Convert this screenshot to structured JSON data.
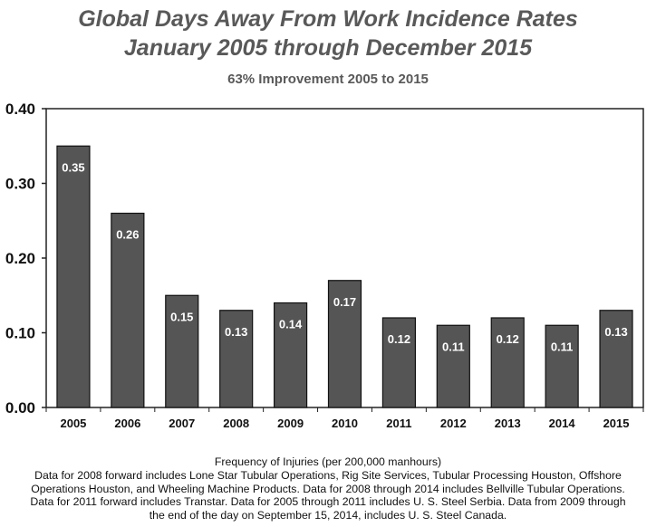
{
  "chart_data": {
    "type": "bar",
    "title": "Global Days Away From Work Incidence Rates",
    "title_line2": "January 2005 through December 2015",
    "subtitle": "63% Improvement 2005 to 2015",
    "categories": [
      "2005",
      "2006",
      "2007",
      "2008",
      "2009",
      "2010",
      "2011",
      "2012",
      "2013",
      "2014",
      "2015"
    ],
    "values": [
      0.35,
      0.26,
      0.15,
      0.13,
      0.14,
      0.17,
      0.12,
      0.11,
      0.12,
      0.11,
      0.13
    ],
    "data_labels": [
      "0.35",
      "0.26",
      "0.15",
      "0.13",
      "0.14",
      "0.17",
      "0.12",
      "0.11",
      "0.12",
      "0.11",
      "0.13"
    ],
    "yticks": [
      "0.00",
      "0.10",
      "0.20",
      "0.30",
      "0.40"
    ],
    "ylim": [
      0,
      0.4
    ],
    "xlabel": "",
    "ylabel": "",
    "grid": false,
    "bar_color": "#555555",
    "notes": [
      "Frequency of Injuries (per 200,000 manhours)",
      "Data for 2008 forward includes Lone Star Tubular Operations, Rig Site Services, Tubular Processing  Houston, Offshore",
      "Operations Houston, and Wheeling Machine Products.  Data for 2008 through 2014 includes Bellville Tubular Operations.",
      "Data for 2011 forward includes Transtar.  Data for 2005 through 2011 includes U. S. Steel Serbia.  Data from 2009 through",
      "the end of the day on September 15, 2014, includes U. S. Steel Canada."
    ]
  }
}
